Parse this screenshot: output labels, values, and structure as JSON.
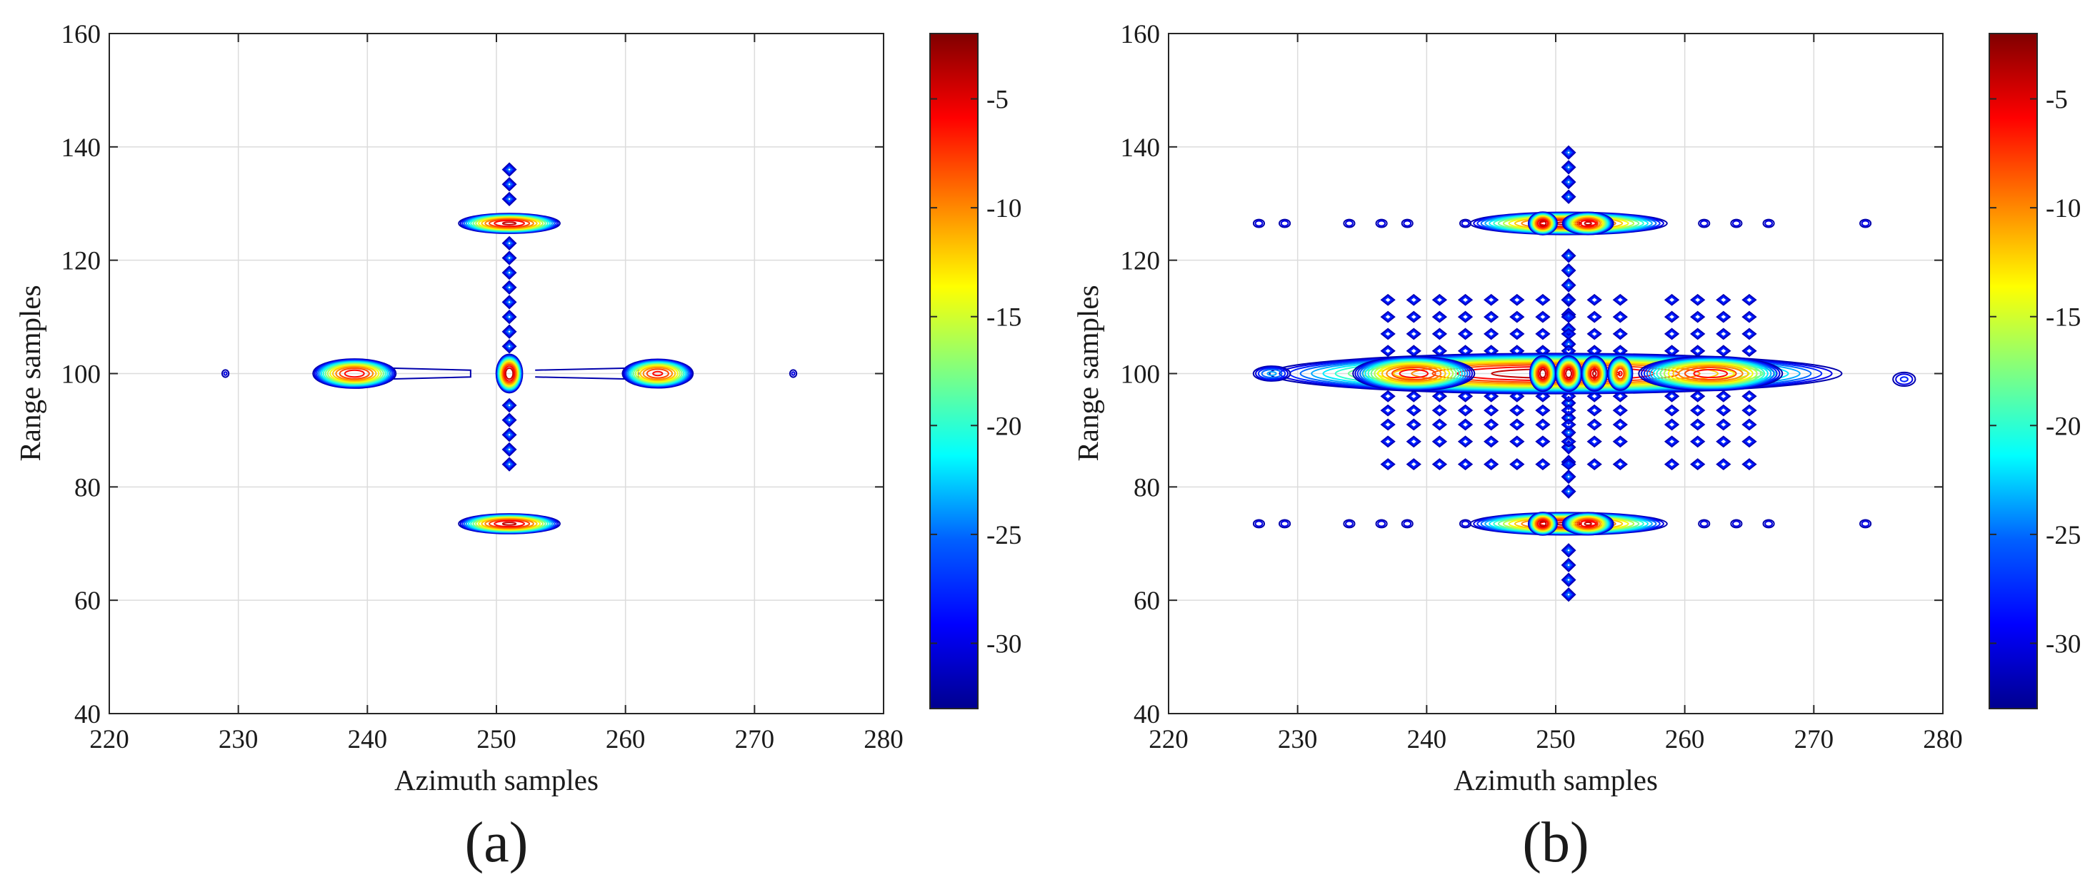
{
  "figure": {
    "panels": [
      "(a)",
      "(b)"
    ]
  },
  "colormap": {
    "name": "jet",
    "stops": [
      "#00008f",
      "#0000ff",
      "#0080ff",
      "#00ffff",
      "#80ff80",
      "#ffff00",
      "#ff8000",
      "#ff0000",
      "#800000"
    ]
  },
  "chart_data": [
    {
      "type": "contour",
      "panel_label": "(a)",
      "xlabel": "Azimuth samples",
      "ylabel": "Range samples",
      "xlim": [
        220,
        280
      ],
      "ylim": [
        40,
        160
      ],
      "xticks": [
        "220",
        "230",
        "240",
        "250",
        "260",
        "270",
        "280"
      ],
      "yticks": [
        "40",
        "60",
        "80",
        "100",
        "120",
        "140",
        "160"
      ],
      "grid": true,
      "colorbar": {
        "range": [
          -33,
          -2
        ],
        "ticks": [
          -30,
          -25,
          -20,
          -15,
          -10,
          -5
        ],
        "tick_labels": [
          "-30",
          "-25",
          "-20",
          "-15",
          "-10",
          "-5"
        ]
      },
      "contour_levels_db": [
        -32,
        -30,
        -28,
        -26,
        -24,
        -22,
        -20,
        -18,
        -16,
        -14,
        -12,
        -10,
        -8,
        -6,
        -4
      ],
      "features": [
        {
          "name": "center",
          "x": 251,
          "y": 100,
          "peak_db": -2,
          "sx": 0.45,
          "sy": 1.5
        },
        {
          "name": "top",
          "x": 251,
          "y": 126.5,
          "peak_db": -4,
          "sx": 1.8,
          "sy": 0.8
        },
        {
          "name": "bottom",
          "x": 251,
          "y": 73.5,
          "peak_db": -4,
          "sx": 1.8,
          "sy": 0.8
        },
        {
          "name": "left",
          "x": 239,
          "y": 100,
          "peak_db": -5,
          "sx": 1.5,
          "sy": 1.2
        },
        {
          "name": "right",
          "x": 262.5,
          "y": 100,
          "peak_db": -6,
          "sx": 1.3,
          "sy": 1.2
        },
        {
          "name": "far-left",
          "x": 229,
          "y": 100,
          "peak_db": -30,
          "sx": 0.4,
          "sy": 1.0
        },
        {
          "name": "far-right",
          "x": 273,
          "y": 100,
          "peak_db": -30,
          "sx": 0.4,
          "sy": 1.0
        }
      ],
      "sidelobes": {
        "vertical_arm": {
          "x": 251,
          "y_from": 84,
          "y_to": 137,
          "step": 2.6
        },
        "horizontal_arm_left": {
          "y": 100,
          "x_from": 241,
          "x_to": 248
        },
        "horizontal_arm_right": {
          "y": 100,
          "x_from": 253,
          "x_to": 261
        }
      }
    },
    {
      "type": "contour",
      "panel_label": "(b)",
      "xlabel": "Azimuth samples",
      "ylabel": "Range samples",
      "xlim": [
        220,
        280
      ],
      "ylim": [
        40,
        160
      ],
      "xticks": [
        "220",
        "230",
        "240",
        "250",
        "260",
        "270",
        "280"
      ],
      "yticks": [
        "40",
        "60",
        "80",
        "100",
        "120",
        "140",
        "160"
      ],
      "grid": true,
      "colorbar": {
        "range": [
          -33,
          -2
        ],
        "ticks": [
          -30,
          -25,
          -20,
          -15,
          -10,
          -5
        ],
        "tick_labels": [
          "-30",
          "-25",
          "-20",
          "-15",
          "-10",
          "-5"
        ]
      },
      "contour_levels_db": [
        -32,
        -30,
        -28,
        -26,
        -24,
        -22,
        -20,
        -18,
        -16,
        -14,
        -12,
        -10,
        -8,
        -6,
        -4
      ],
      "features": [
        {
          "name": "center-row-main",
          "x": 250,
          "y": 100,
          "peak_db": -3,
          "sx": 10,
          "sy": 1.6
        },
        {
          "name": "center-row-left",
          "x": 239,
          "y": 100,
          "peak_db": -5,
          "sx": 2.2,
          "sy": 1.4
        },
        {
          "name": "center-row-right",
          "x": 262,
          "y": 100,
          "peak_db": -5,
          "sx": 2.6,
          "sy": 1.4
        },
        {
          "name": "center-peak-1",
          "x": 249,
          "y": 100,
          "peak_db": -3,
          "sx": 0.45,
          "sy": 1.4
        },
        {
          "name": "center-peak-2",
          "x": 251,
          "y": 100,
          "peak_db": -3,
          "sx": 0.45,
          "sy": 1.4
        },
        {
          "name": "center-peak-3",
          "x": 253,
          "y": 100,
          "peak_db": -4,
          "sx": 0.45,
          "sy": 1.4
        },
        {
          "name": "center-peak-4",
          "x": 255,
          "y": 100,
          "peak_db": -6,
          "sx": 0.45,
          "sy": 1.4
        },
        {
          "name": "top-row",
          "x": 251,
          "y": 126.5,
          "peak_db": -4,
          "sx": 3.5,
          "sy": 0.9
        },
        {
          "name": "top-peak-1",
          "x": 249,
          "y": 126.5,
          "peak_db": -3,
          "sx": 0.5,
          "sy": 0.9
        },
        {
          "name": "top-peak-2",
          "x": 252.5,
          "y": 126.5,
          "peak_db": -4,
          "sx": 0.9,
          "sy": 0.9
        },
        {
          "name": "bottom-row",
          "x": 251,
          "y": 73.5,
          "peak_db": -4,
          "sx": 3.5,
          "sy": 0.9
        },
        {
          "name": "bottom-peak-1",
          "x": 249,
          "y": 73.5,
          "peak_db": -3,
          "sx": 0.5,
          "sy": 0.9
        },
        {
          "name": "bottom-peak-2",
          "x": 252.5,
          "y": 73.5,
          "peak_db": -4,
          "sx": 0.9,
          "sy": 0.9
        },
        {
          "name": "left-blob",
          "x": 228,
          "y": 100,
          "peak_db": -24,
          "sx": 1.2,
          "sy": 1.1
        },
        {
          "name": "right-blob",
          "x": 277,
          "y": 99,
          "peak_db": -28,
          "sx": 1.0,
          "sy": 1.4
        }
      ],
      "sidelobes": {
        "diamond_columns_x": [
          237,
          239,
          241,
          243,
          245,
          247,
          249,
          251,
          253,
          255,
          259,
          261,
          263,
          265
        ],
        "diamond_rows_y": [
          84,
          88,
          91,
          93.5,
          96,
          104,
          107,
          110,
          113
        ],
        "top_bottom_row_islands_x": [
          227,
          229,
          234,
          236.5,
          238.5,
          243,
          261.5,
          264,
          266.5,
          274
        ],
        "vertical_arm": {
          "x": 251,
          "y_from": 61,
          "y_to": 141,
          "step": 2.6
        }
      }
    }
  ]
}
